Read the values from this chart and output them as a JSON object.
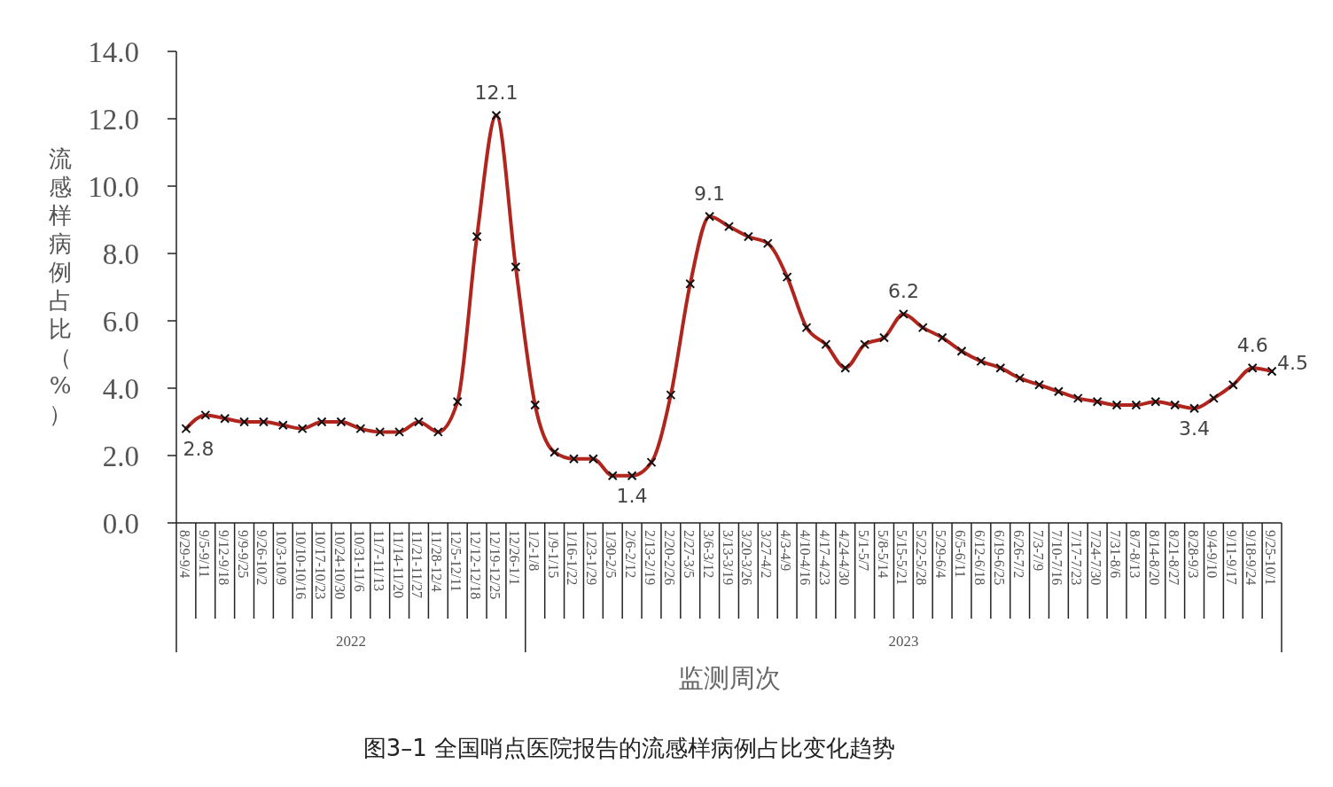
{
  "chart_data": {
    "type": "line",
    "title": "图3–1  全国哨点医院报告的流感样病例占比变化趋势",
    "xlabel": "监测周次",
    "ylabel": "流感样病例占比（%）",
    "categories": [
      "8/29-9/4",
      "9/5-9/11",
      "9/12-9/18",
      "9/9-9/25",
      "9/26-10/2",
      "10/3-10/9",
      "10/10-10/16",
      "10/17-10/23",
      "10/24-10/30",
      "10/31-11/6",
      "11/7-11/13",
      "11/14-11/20",
      "11/21-11/27",
      "11/28-12/4",
      "12/5-12/11",
      "12/12-12/18",
      "12/19-12/25",
      "12/26-1/1",
      "1/2-1/8",
      "1/9-1/15",
      "1/16-1/22",
      "1/23-1/29",
      "1/30-2/5",
      "2/6-2/12",
      "2/13-2/19",
      "2/20-2/26",
      "2/27-3/5",
      "3/6-3/12",
      "3/13-3/19",
      "3/20-3/26",
      "3/27-4/2",
      "4/3-4/9",
      "4/10-4/16",
      "4/17-4/23",
      "4/24-4/30",
      "5/1-5/7",
      "5/8-5/14",
      "5/15-5/21",
      "5/22-5/28",
      "5/29-6/4",
      "6/5-6/11",
      "6/12-6/18",
      "6/19-6/25",
      "6/26-7/2",
      "7/3-7/9",
      "7/10-7/16",
      "7/17-7/23",
      "7/24-7/30",
      "7/31-8/6",
      "8/7-8/13",
      "8/14-8/20",
      "8/21-8/27",
      "8/28-9/3",
      "9/4-9/10",
      "9/11-9/17",
      "9/18-9/24",
      "9/25-10/1"
    ],
    "series": [
      {
        "color": "#b0261e",
        "values": [
          2.8,
          3.2,
          3.1,
          3.0,
          3.0,
          2.9,
          2.8,
          3.0,
          3.0,
          2.8,
          2.7,
          2.7,
          3.0,
          2.7,
          3.6,
          8.5,
          12.1,
          7.6,
          3.5,
          2.1,
          1.9,
          1.9,
          1.4,
          1.4,
          1.8,
          3.8,
          7.1,
          9.1,
          8.8,
          8.5,
          8.3,
          7.3,
          5.8,
          5.3,
          4.6,
          5.3,
          5.5,
          6.2,
          5.8,
          5.5,
          5.1,
          4.8,
          4.6,
          4.3,
          4.1,
          3.9,
          3.7,
          3.6,
          3.5,
          3.5,
          3.6,
          3.5,
          3.4,
          3.7,
          4.1,
          4.6,
          4.5
        ],
        "value_labels": [
          "2.8",
          null,
          null,
          null,
          null,
          null,
          null,
          null,
          null,
          null,
          null,
          null,
          null,
          null,
          null,
          null,
          "12.1",
          null,
          null,
          null,
          null,
          null,
          null,
          "1.4",
          null,
          null,
          null,
          "9.1",
          null,
          null,
          null,
          null,
          null,
          null,
          null,
          null,
          null,
          "6.2",
          null,
          null,
          null,
          null,
          null,
          null,
          null,
          null,
          null,
          null,
          null,
          null,
          null,
          null,
          "3.4",
          null,
          null,
          "4.6",
          "4.5"
        ]
      }
    ],
    "annotations": [
      "2022",
      "2023"
    ],
    "ylim": [
      0,
      14
    ],
    "yticks": [
      {
        "value": 0,
        "label": "0.0"
      },
      {
        "value": 2,
        "label": "2.0"
      },
      {
        "value": 4,
        "label": "4.0"
      },
      {
        "value": 6,
        "label": "6.0"
      },
      {
        "value": 8,
        "label": "8.0"
      },
      {
        "value": 10,
        "label": "10.0"
      },
      {
        "value": 12,
        "label": "12.0"
      },
      {
        "value": 14,
        "label": "14.0"
      }
    ],
    "marker": "cross",
    "line_style": "solid"
  }
}
